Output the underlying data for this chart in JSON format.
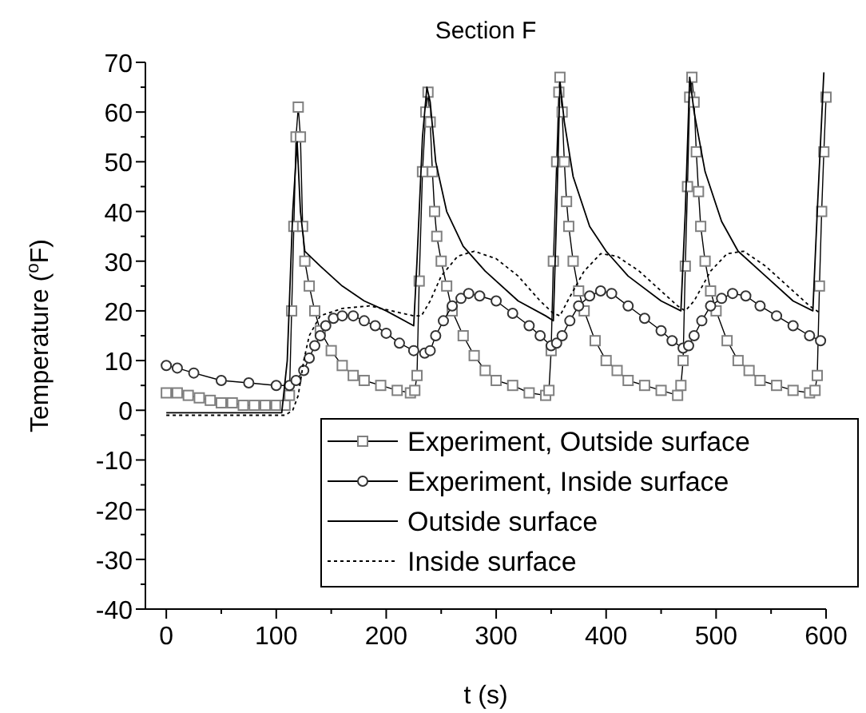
{
  "chart_data": {
    "type": "line",
    "title": "Section F",
    "xlabel": "t (s)",
    "ylabel": "Temperature ($^{o}$F)",
    "xlim": [
      -19,
      600
    ],
    "ylim": [
      -40,
      70
    ],
    "xticks": [
      0,
      {
        "value": 50,
        "label": null
      },
      100,
      {
        "value": 150,
        "label": null
      },
      200,
      {
        "value": 250,
        "label": null
      },
      300,
      {
        "value": 350,
        "label": null
      },
      400,
      {
        "value": 450,
        "label": null
      },
      500,
      {
        "value": 550,
        "label": null
      },
      600
    ],
    "yticks": [
      -40,
      {
        "value": -35,
        "label": null
      },
      -30,
      {
        "value": -25,
        "label": null
      },
      -20,
      {
        "value": -15,
        "label": null
      },
      -10,
      {
        "value": -5,
        "label": null
      },
      0,
      {
        "value": 5,
        "label": null
      },
      10,
      {
        "value": 15,
        "label": null
      },
      20,
      {
        "value": 25,
        "label": null
      },
      30,
      {
        "value": 35,
        "label": null
      },
      40,
      {
        "value": 45,
        "label": null
      },
      50,
      {
        "value": 55,
        "label": null
      },
      60,
      {
        "value": 65,
        "label": null
      },
      70
    ],
    "grid": false,
    "legend": "bottom right",
    "series": [
      {
        "name": "Experiment, Outside surface",
        "color": "#808080",
        "marker": "square",
        "line_style": "solid",
        "x": [
          0,
          10,
          20,
          30,
          40,
          50,
          60,
          70,
          80,
          90,
          100,
          108,
          112,
          114,
          116,
          118,
          120,
          122,
          124,
          126,
          130,
          135,
          140,
          150,
          160,
          170,
          180,
          195,
          210,
          222,
          226,
          228,
          230,
          233,
          236,
          238,
          240,
          242,
          244,
          246,
          250,
          255,
          260,
          270,
          280,
          290,
          300,
          315,
          330,
          345,
          348,
          350,
          352,
          355,
          357,
          358,
          360,
          362,
          364,
          366,
          370,
          375,
          380,
          390,
          400,
          410,
          420,
          435,
          450,
          465,
          468,
          470,
          472,
          474,
          476,
          478,
          480,
          482,
          484,
          486,
          490,
          495,
          500,
          510,
          520,
          530,
          540,
          555,
          570,
          585,
          590,
          592,
          594,
          596,
          598,
          600
        ],
        "values": [
          3.5,
          3.5,
          3,
          2.5,
          2,
          1.5,
          1.5,
          1,
          1,
          1,
          1,
          1,
          3,
          20,
          37,
          55,
          61,
          55,
          37,
          30,
          25,
          20,
          16,
          12,
          9,
          7,
          6,
          5,
          4,
          3.5,
          4,
          7,
          26,
          48,
          60,
          64,
          58,
          48,
          40,
          35,
          30,
          25,
          20,
          15,
          11,
          8,
          6,
          5,
          3.5,
          3,
          4,
          12,
          30,
          50,
          64,
          67,
          60,
          50,
          42,
          37,
          30,
          24,
          20,
          14,
          10,
          8,
          6,
          5,
          4,
          3,
          5,
          10,
          29,
          45,
          63,
          67,
          62,
          52,
          44,
          37,
          30,
          24,
          20,
          14,
          10,
          8,
          6,
          5,
          4,
          3.5,
          4,
          7,
          25,
          40,
          52,
          63
        ]
      },
      {
        "name": "Experiment, Inside surface",
        "color": "#333333",
        "marker": "circle",
        "line_style": "solid",
        "x": [
          0,
          10,
          25,
          50,
          75,
          100,
          112,
          118,
          125,
          130,
          135,
          140,
          145,
          152,
          160,
          170,
          180,
          190,
          200,
          212,
          225,
          235,
          240,
          245,
          252,
          260,
          268,
          275,
          285,
          300,
          315,
          330,
          340,
          350,
          355,
          360,
          367,
          375,
          385,
          395,
          405,
          420,
          435,
          450,
          460,
          470,
          475,
          480,
          487,
          495,
          505,
          515,
          527,
          540,
          555,
          570,
          585,
          595
        ],
        "values": [
          9,
          8.5,
          7.5,
          6,
          5.5,
          5,
          5,
          6,
          8,
          10.5,
          13,
          15,
          17,
          18.5,
          19,
          19,
          18,
          17,
          15.5,
          13.5,
          12,
          11.5,
          12,
          15,
          18,
          21,
          22.5,
          23.5,
          23,
          22,
          19.5,
          17,
          15,
          13,
          13.5,
          15,
          18,
          21,
          23,
          24,
          23.5,
          21,
          18.5,
          16,
          14,
          12.5,
          13,
          15,
          18,
          21,
          22.5,
          23.5,
          23,
          21,
          19,
          17,
          15,
          14
        ]
      },
      {
        "name": "Outside surface",
        "color": "#000000",
        "marker": "none",
        "line_style": "solid",
        "x": [
          0,
          105,
          110,
          115,
          119,
          122,
          126,
          140,
          160,
          180,
          200,
          225,
          228,
          233,
          237,
          240,
          245,
          255,
          270,
          290,
          320,
          345,
          352,
          355,
          358,
          362,
          370,
          385,
          400,
          420,
          450,
          468,
          472,
          476,
          480,
          490,
          505,
          520,
          545,
          570,
          588,
          592,
          598
        ],
        "values": [
          -0.5,
          -0.5,
          10,
          40,
          54,
          40,
          32,
          29,
          25,
          22,
          20,
          17,
          30,
          55,
          65,
          62,
          50,
          40,
          33,
          28,
          22,
          19,
          18,
          40,
          66,
          58,
          47,
          37,
          32,
          27,
          22,
          20,
          40,
          67,
          60,
          48,
          38,
          32,
          27,
          22,
          20,
          40,
          68
        ]
      },
      {
        "name": "Inside surface",
        "color": "#000000",
        "marker": "none",
        "line_style": "dotted",
        "x": [
          0,
          108,
          115,
          120,
          125,
          130,
          140,
          160,
          185,
          205,
          225,
          232,
          240,
          250,
          265,
          280,
          300,
          320,
          340,
          352,
          358,
          365,
          380,
          395,
          410,
          430,
          450,
          465,
          472,
          480,
          495,
          510,
          525,
          545,
          565,
          585,
          595
        ],
        "values": [
          -1,
          -1,
          0,
          3,
          10,
          15,
          19,
          20.5,
          21,
          20,
          19,
          19,
          22,
          27,
          31,
          32,
          30.5,
          27,
          22,
          19.5,
          19,
          22,
          28,
          31.5,
          31,
          28,
          24,
          21,
          20,
          22,
          28,
          31.5,
          32,
          29,
          25,
          21,
          19.5
        ]
      }
    ]
  }
}
